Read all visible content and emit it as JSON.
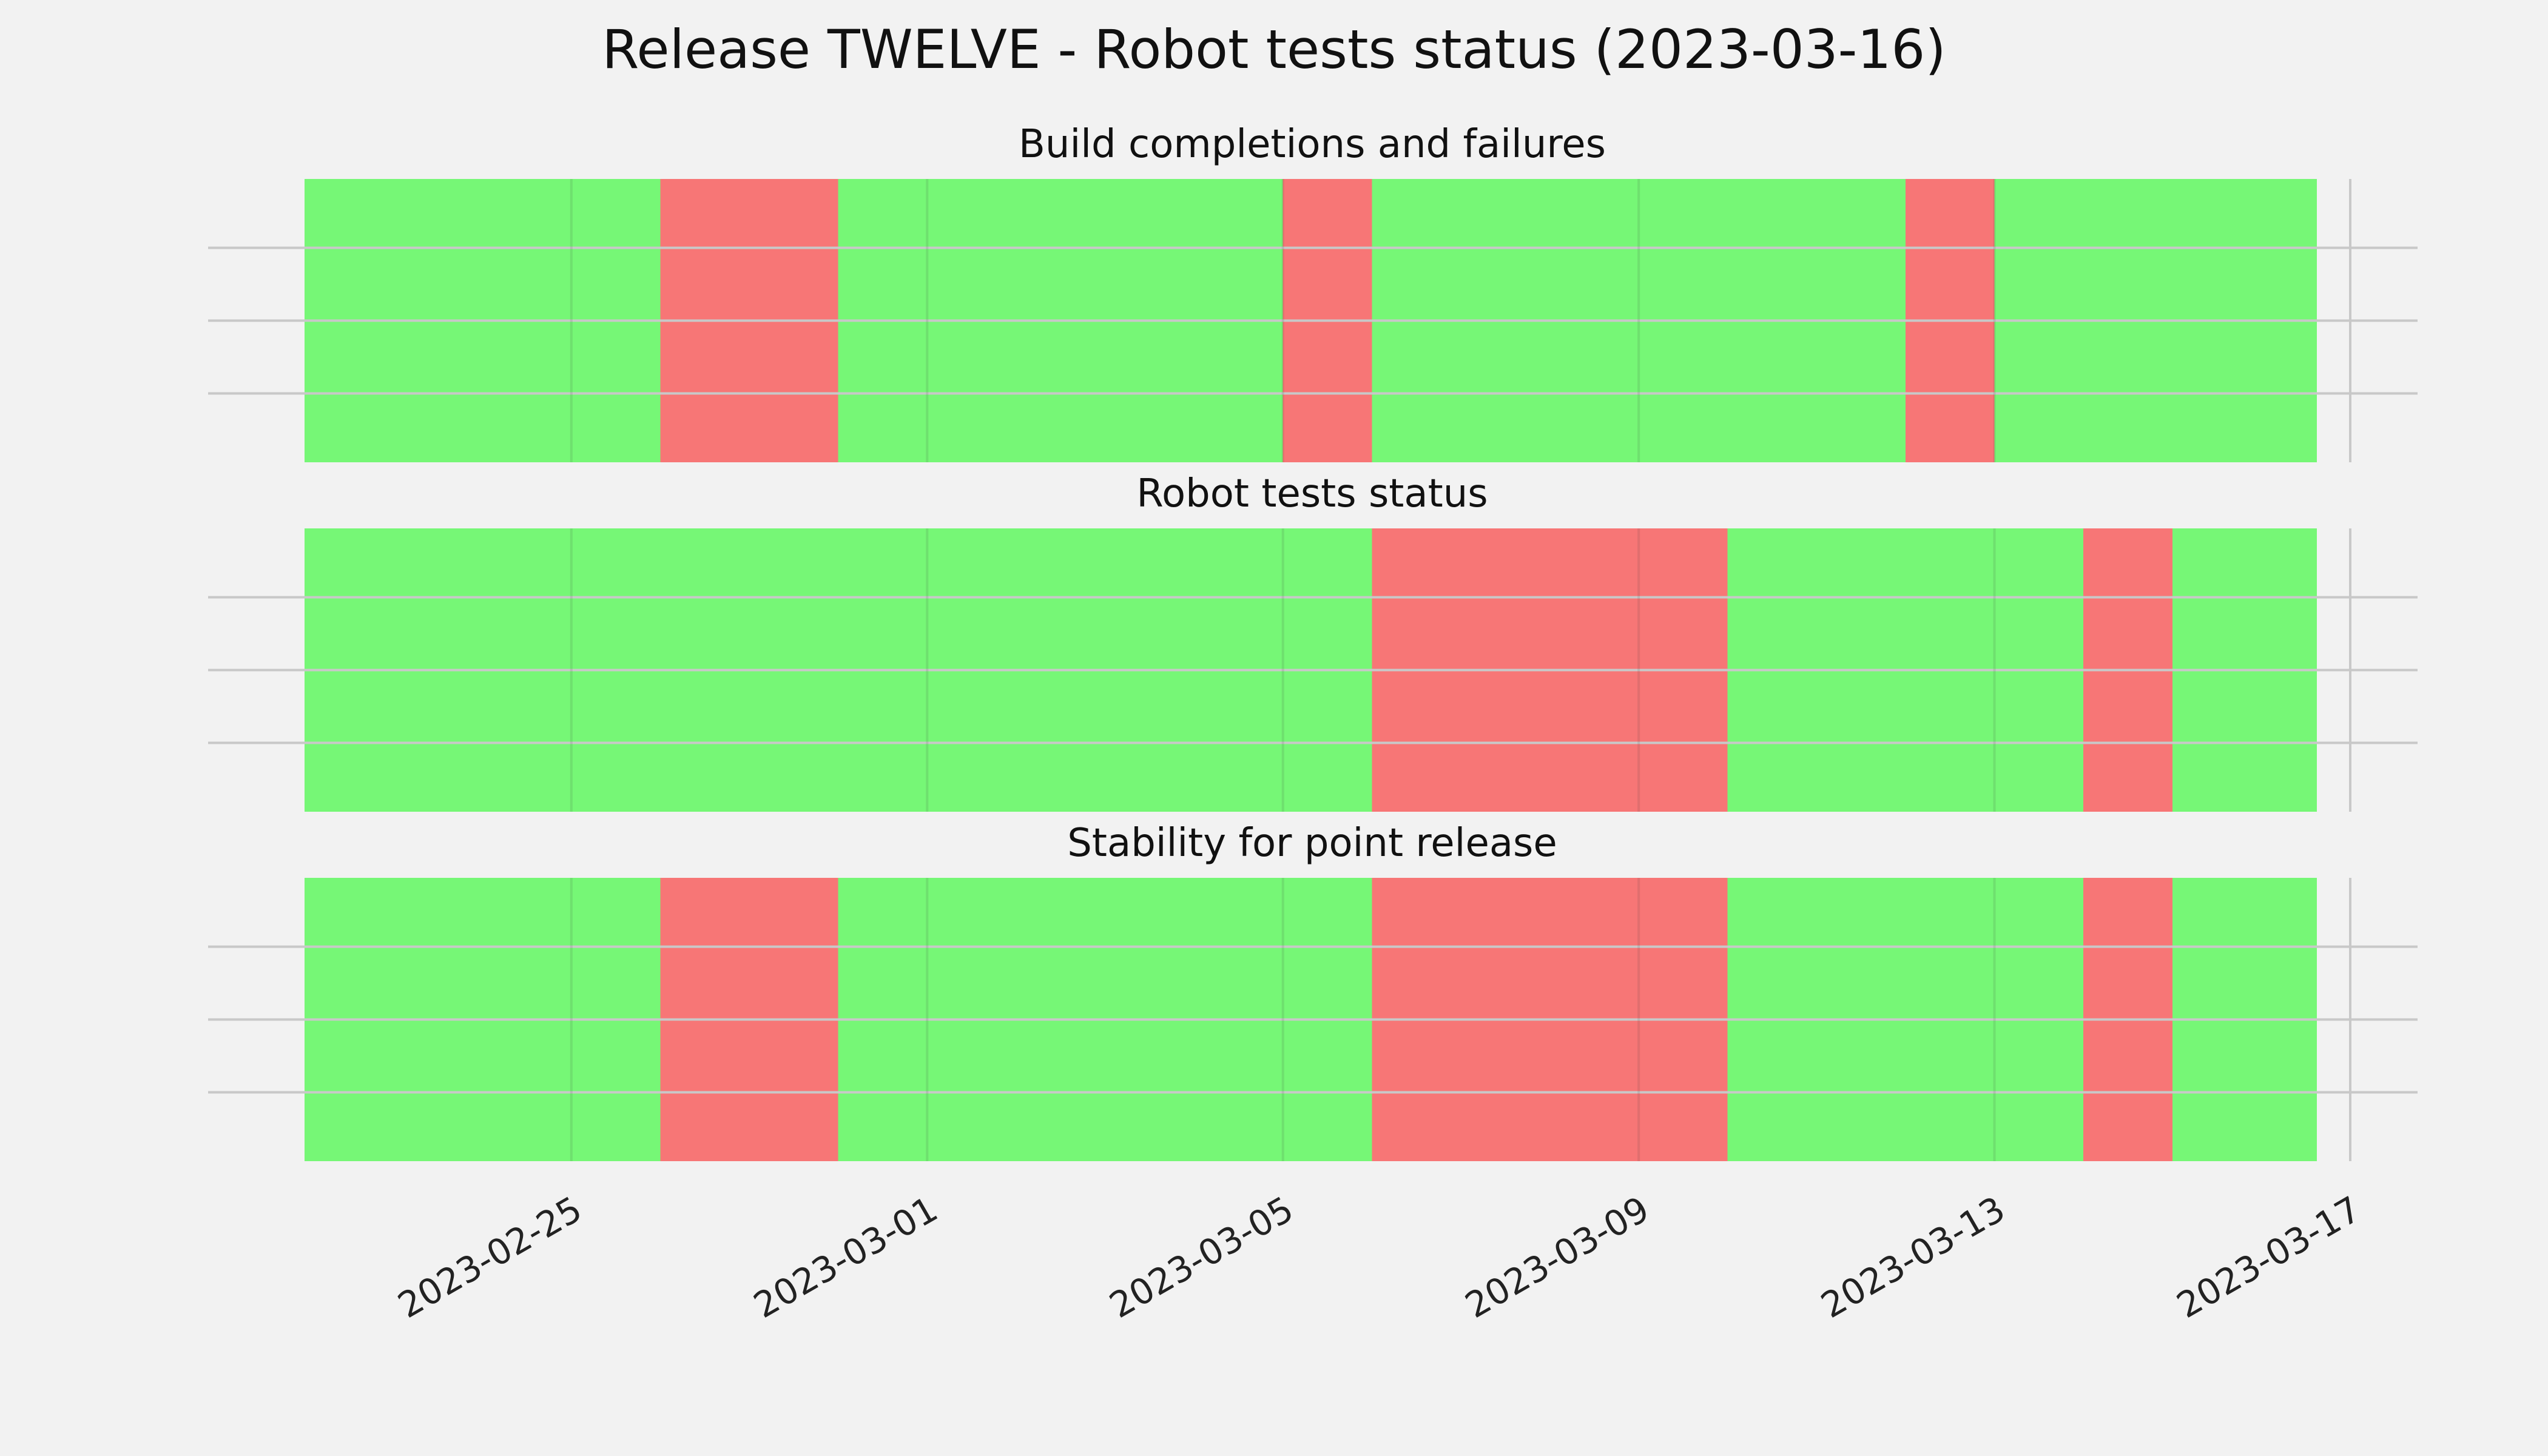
{
  "chart_data": {
    "type": "timeline",
    "title": "Release TWELVE - Robot tests status (2023-03-16)",
    "colors": {
      "pass": "#76f776",
      "fail": "#f77676"
    },
    "x_range": [
      "2023-02-22",
      "2023-03-17"
    ],
    "x_ticks": [
      "2023-02-25",
      "2023-03-01",
      "2023-03-05",
      "2023-03-09",
      "2023-03-13",
      "2023-03-17"
    ],
    "grid": true,
    "panels": [
      {
        "title": "Build completions and failures",
        "segments": [
          {
            "start": "2023-02-22 00:00",
            "end": "2023-02-26 00:00",
            "status": "pass"
          },
          {
            "start": "2023-02-26 00:00",
            "end": "2023-02-28 00:00",
            "status": "fail"
          },
          {
            "start": "2023-02-28 00:00",
            "end": "2023-03-05 00:00",
            "status": "pass"
          },
          {
            "start": "2023-03-05 00:00",
            "end": "2023-03-06 00:00",
            "status": "fail"
          },
          {
            "start": "2023-03-06 00:00",
            "end": "2023-03-12 00:00",
            "status": "pass"
          },
          {
            "start": "2023-03-12 00:00",
            "end": "2023-03-13 00:00",
            "status": "fail"
          },
          {
            "start": "2023-03-13 00:00",
            "end": "2023-03-16 15:00",
            "status": "pass"
          }
        ]
      },
      {
        "title": "Robot tests status",
        "segments": [
          {
            "start": "2023-02-22 00:00",
            "end": "2023-03-06 00:00",
            "status": "pass"
          },
          {
            "start": "2023-03-06 00:00",
            "end": "2023-03-10 00:00",
            "status": "fail"
          },
          {
            "start": "2023-03-10 00:00",
            "end": "2023-03-14 00:00",
            "status": "pass"
          },
          {
            "start": "2023-03-14 00:00",
            "end": "2023-03-15 00:00",
            "status": "fail"
          },
          {
            "start": "2023-03-15 00:00",
            "end": "2023-03-16 15:00",
            "status": "pass"
          }
        ]
      },
      {
        "title": "Stability for point release",
        "segments": [
          {
            "start": "2023-02-22 00:00",
            "end": "2023-02-26 00:00",
            "status": "pass"
          },
          {
            "start": "2023-02-26 00:00",
            "end": "2023-02-28 00:00",
            "status": "fail"
          },
          {
            "start": "2023-02-28 00:00",
            "end": "2023-03-06 00:00",
            "status": "pass"
          },
          {
            "start": "2023-03-06 00:00",
            "end": "2023-03-10 00:00",
            "status": "fail"
          },
          {
            "start": "2023-03-10 00:00",
            "end": "2023-03-14 00:00",
            "status": "pass"
          },
          {
            "start": "2023-03-14 00:00",
            "end": "2023-03-15 00:00",
            "status": "fail"
          },
          {
            "start": "2023-03-15 00:00",
            "end": "2023-03-16 15:00",
            "status": "pass"
          }
        ]
      }
    ]
  }
}
